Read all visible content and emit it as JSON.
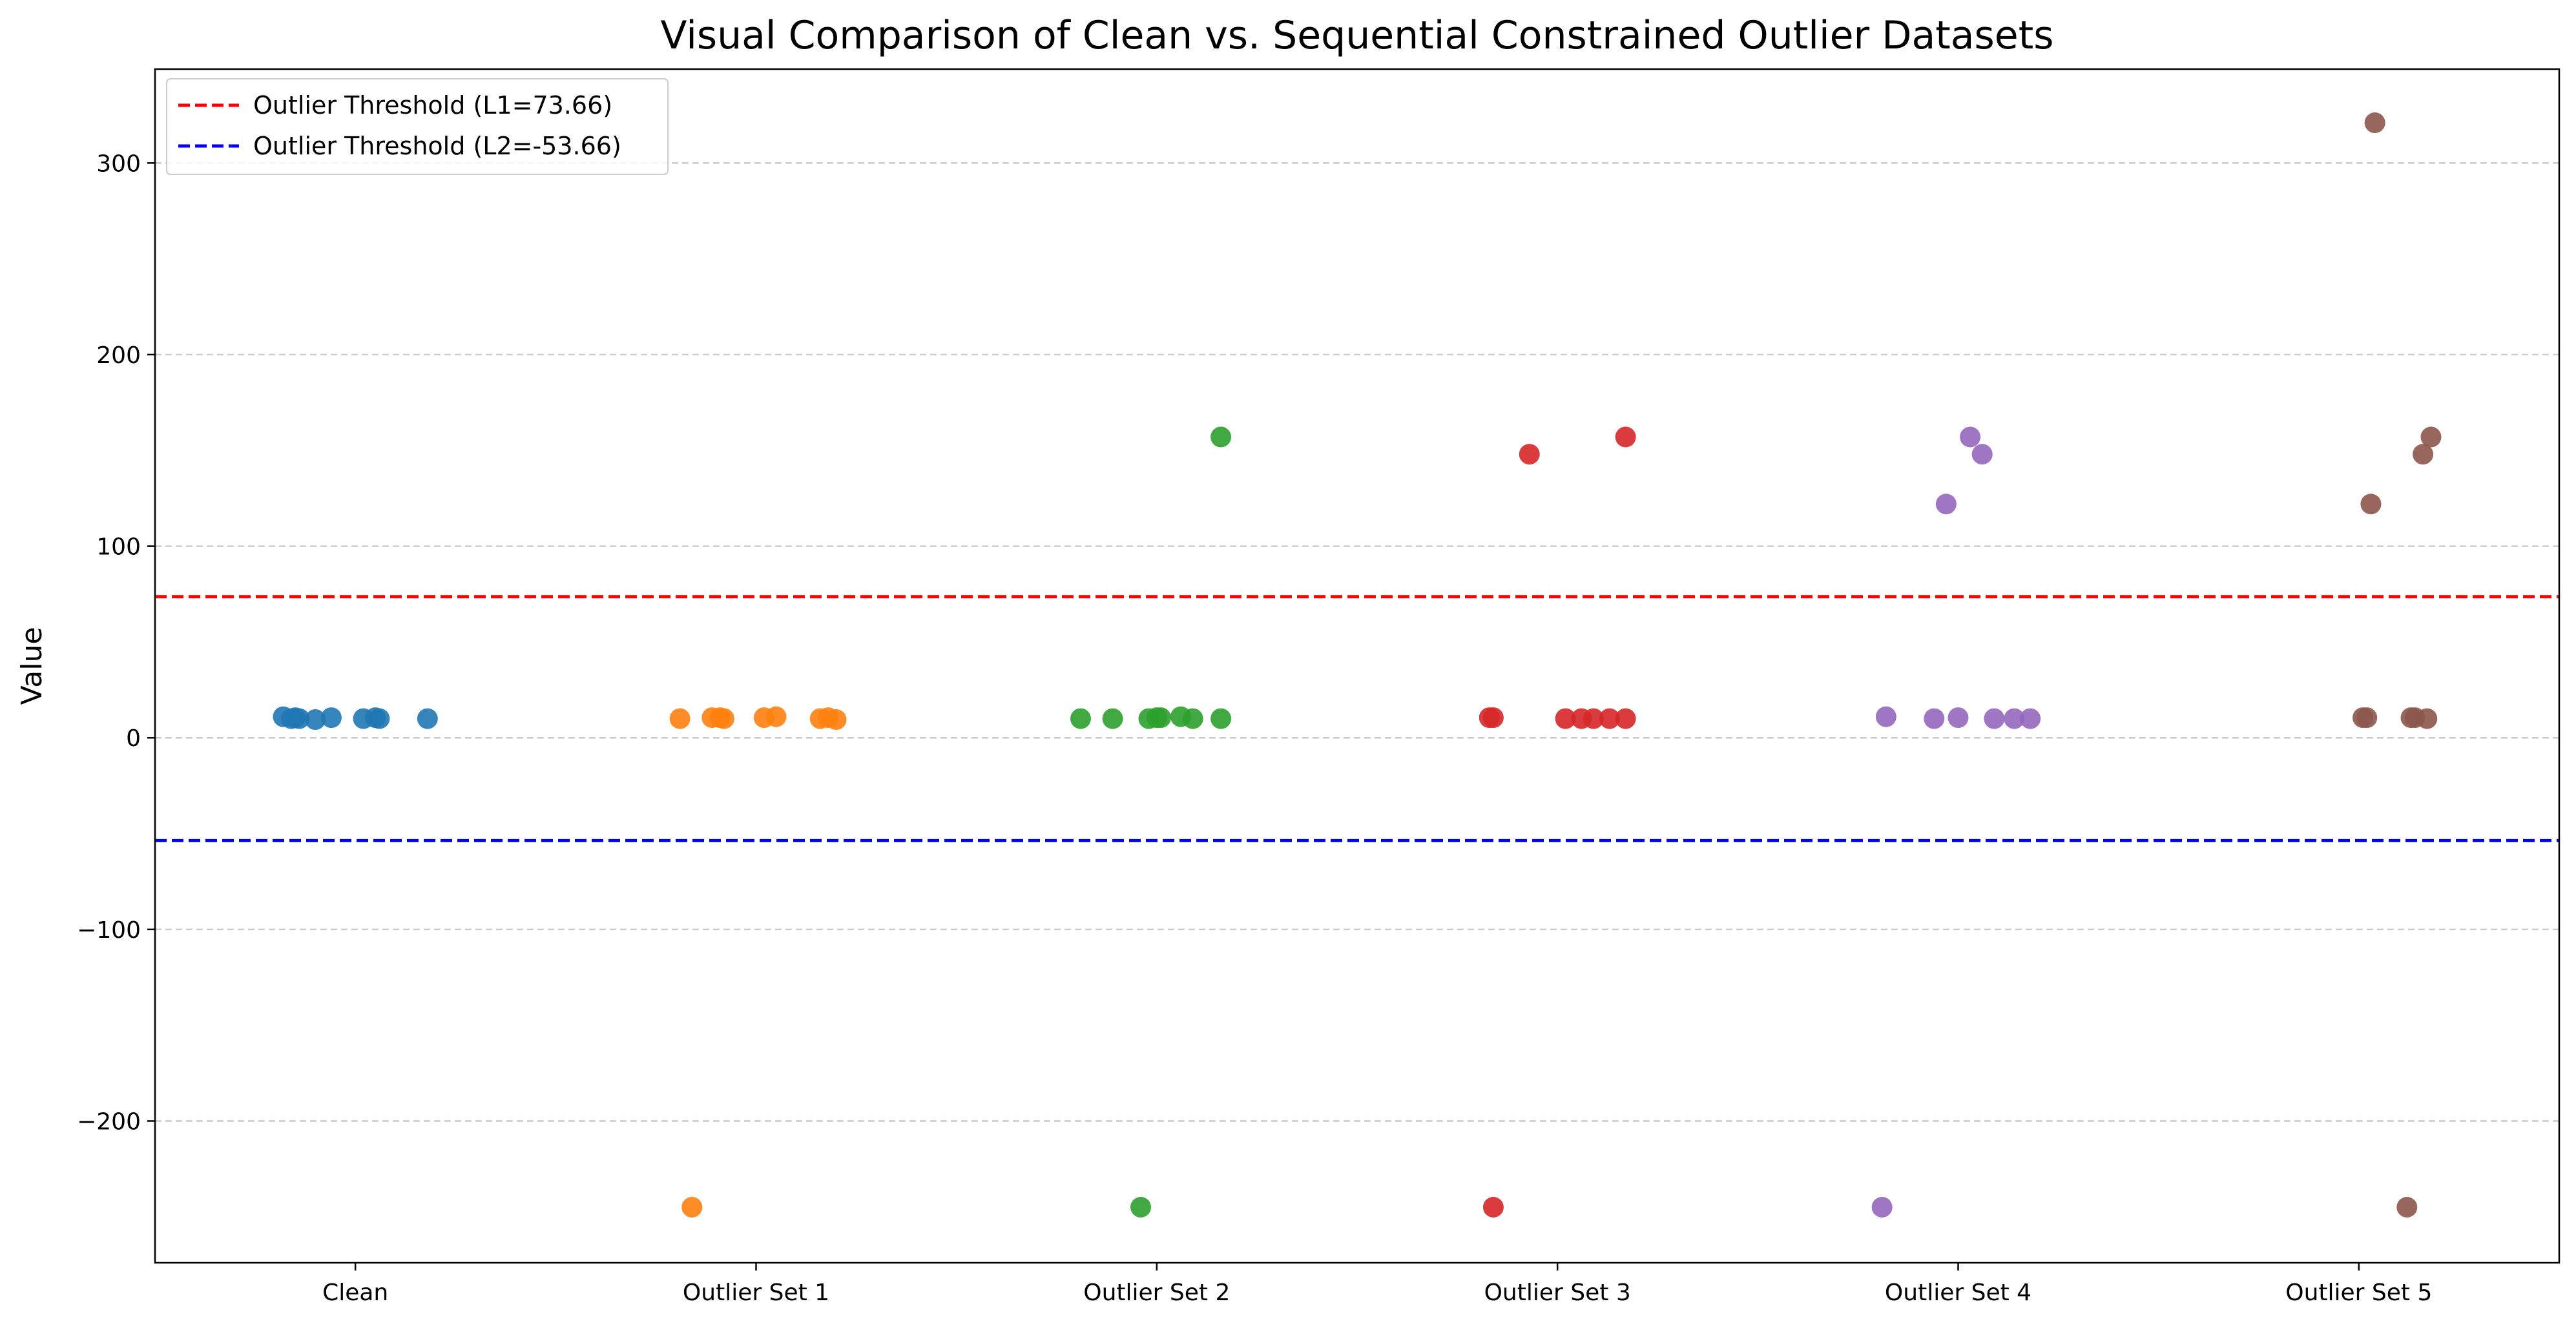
{
  "chart_data": {
    "type": "scatter",
    "title": "Visual Comparison of Clean vs. Sequential Constrained Outlier Datasets",
    "xlabel": "",
    "ylabel": "Value",
    "categories": [
      "Clean",
      "Outlier Set 1",
      "Outlier Set 2",
      "Outlier Set 3",
      "Outlier Set 4",
      "Outlier Set 5"
    ],
    "ylim": [
      -274,
      349
    ],
    "yticks": [
      -200,
      -100,
      0,
      100,
      200,
      300
    ],
    "ytick_labels": [
      "−200",
      "−100",
      "0",
      "100",
      "200",
      "300"
    ],
    "grid": "y, dashed",
    "legend_position": "upper left",
    "thresholds": [
      {
        "label": "Outlier Threshold (L1=73.66)",
        "value": 73.66,
        "color": "#ff0000"
      },
      {
        "label": "Outlier Threshold (L2=-53.66)",
        "value": -53.66,
        "color": "#0000ff"
      }
    ],
    "series": [
      {
        "color": "#1f77b4",
        "points": [
          {
            "x": -0.18,
            "y": 11
          },
          {
            "x": -0.16,
            "y": 10
          },
          {
            "x": -0.15,
            "y": 10.5
          },
          {
            "x": -0.14,
            "y": 10
          },
          {
            "x": -0.1,
            "y": 9.5
          },
          {
            "x": -0.06,
            "y": 10.5
          },
          {
            "x": 0.02,
            "y": 10
          },
          {
            "x": 0.05,
            "y": 10.5
          },
          {
            "x": 0.06,
            "y": 10
          },
          {
            "x": 0.18,
            "y": 10
          }
        ]
      },
      {
        "color": "#ff7f0e",
        "points": [
          {
            "x": -0.19,
            "y": 10
          },
          {
            "x": -0.16,
            "y": -245
          },
          {
            "x": -0.11,
            "y": 10.5
          },
          {
            "x": -0.09,
            "y": 10.5
          },
          {
            "x": -0.08,
            "y": 10
          },
          {
            "x": 0.02,
            "y": 10.5
          },
          {
            "x": 0.05,
            "y": 11
          },
          {
            "x": 0.16,
            "y": 10
          },
          {
            "x": 0.18,
            "y": 10.5
          },
          {
            "x": 0.2,
            "y": 9.5
          }
        ]
      },
      {
        "color": "#2ca02c",
        "points": [
          {
            "x": -0.19,
            "y": 10
          },
          {
            "x": -0.11,
            "y": 10
          },
          {
            "x": -0.04,
            "y": -245
          },
          {
            "x": -0.02,
            "y": 10
          },
          {
            "x": 0.0,
            "y": 10.5
          },
          {
            "x": 0.01,
            "y": 10.5
          },
          {
            "x": 0.06,
            "y": 11
          },
          {
            "x": 0.09,
            "y": 10
          },
          {
            "x": 0.16,
            "y": 157
          },
          {
            "x": 0.16,
            "y": 10
          }
        ]
      },
      {
        "color": "#d62728",
        "points": [
          {
            "x": -0.17,
            "y": 10.5
          },
          {
            "x": -0.16,
            "y": -245
          },
          {
            "x": -0.16,
            "y": 10.5
          },
          {
            "x": -0.07,
            "y": 148
          },
          {
            "x": 0.02,
            "y": 10
          },
          {
            "x": 0.06,
            "y": 10
          },
          {
            "x": 0.09,
            "y": 10
          },
          {
            "x": 0.13,
            "y": 10
          },
          {
            "x": 0.17,
            "y": 157
          },
          {
            "x": 0.17,
            "y": 10
          }
        ]
      },
      {
        "color": "#9467bd",
        "points": [
          {
            "x": -0.19,
            "y": -245
          },
          {
            "x": -0.18,
            "y": 11
          },
          {
            "x": -0.06,
            "y": 10
          },
          {
            "x": -0.03,
            "y": 122
          },
          {
            "x": 0.0,
            "y": 10.5
          },
          {
            "x": 0.03,
            "y": 157
          },
          {
            "x": 0.06,
            "y": 148
          },
          {
            "x": 0.09,
            "y": 10
          },
          {
            "x": 0.14,
            "y": 10
          },
          {
            "x": 0.18,
            "y": 10
          }
        ]
      },
      {
        "color": "#8c564b",
        "points": [
          {
            "x": 0.01,
            "y": 10.5
          },
          {
            "x": 0.02,
            "y": 10.5
          },
          {
            "x": 0.03,
            "y": 122
          },
          {
            "x": 0.04,
            "y": 321
          },
          {
            "x": 0.12,
            "y": -245
          },
          {
            "x": 0.13,
            "y": 10.5
          },
          {
            "x": 0.14,
            "y": 10.5
          },
          {
            "x": 0.16,
            "y": 148
          },
          {
            "x": 0.17,
            "y": 10
          },
          {
            "x": 0.18,
            "y": 157
          }
        ]
      }
    ]
  }
}
